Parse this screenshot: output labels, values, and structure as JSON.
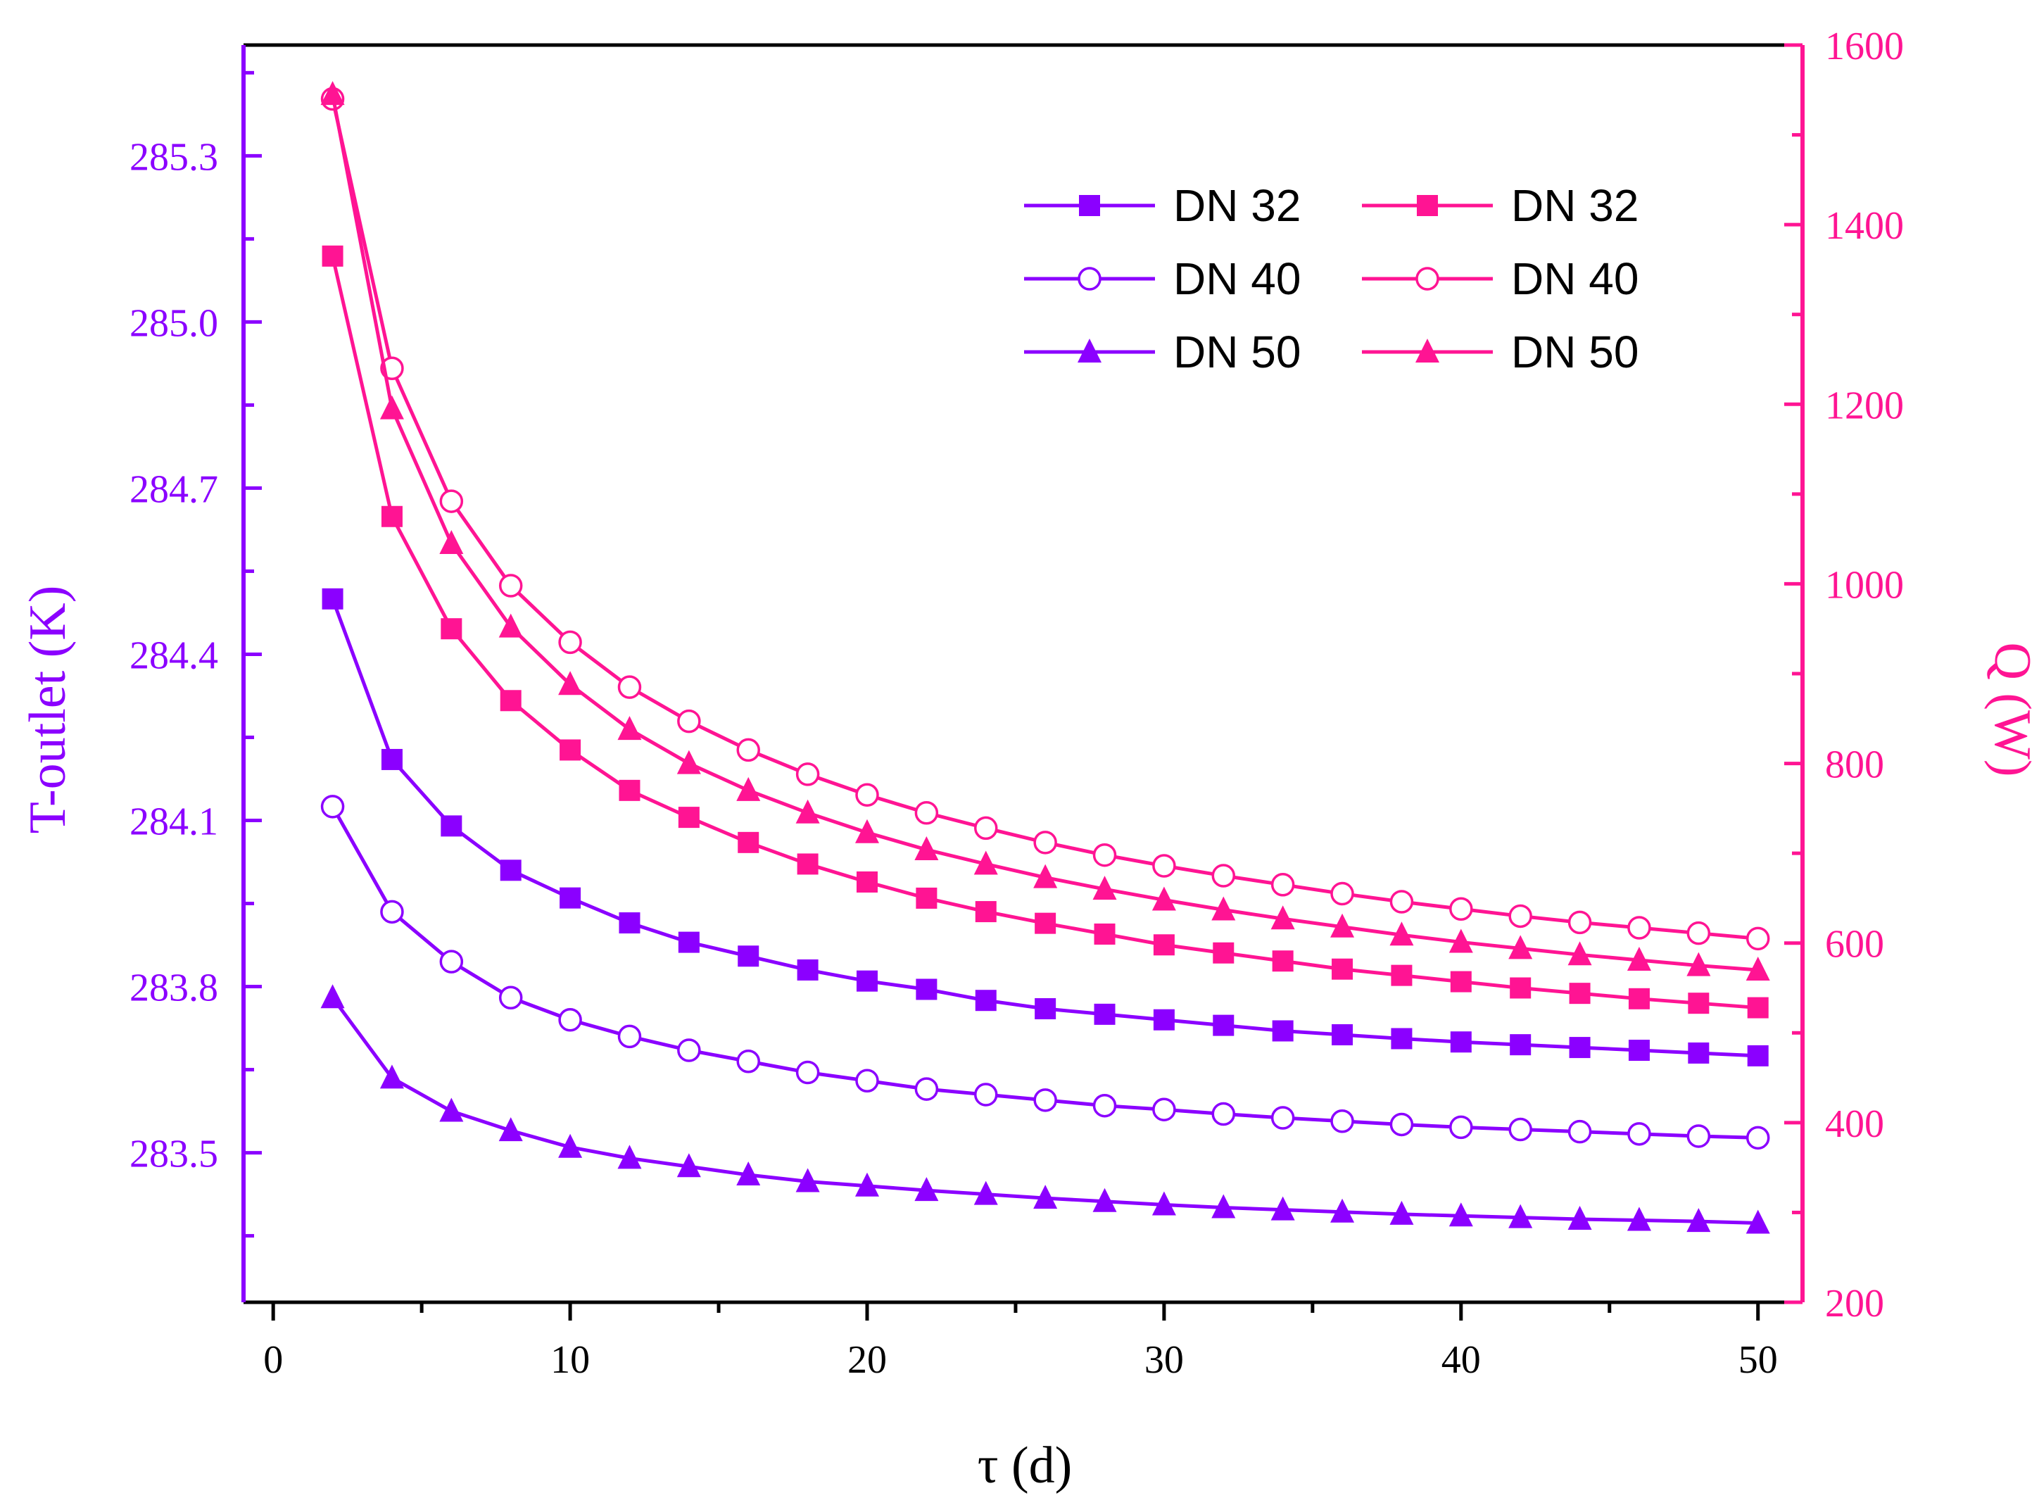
{
  "chart_data": {
    "type": "line",
    "xlabel": "τ (d)",
    "ylabel_left": "T-outlet (K)",
    "ylabel_right": "Q (W)",
    "xlim": [
      -1,
      51.5
    ],
    "ylim_left": [
      283.23,
      285.5
    ],
    "ylim_right": [
      200,
      1600
    ],
    "x_ticks": [
      0,
      10,
      20,
      30,
      40,
      50
    ],
    "y_left_ticks": [
      283.5,
      283.8,
      284.1,
      284.4,
      284.7,
      285.0,
      285.3
    ],
    "y_left_tick_labels": [
      "283.5",
      "283.8",
      "284.1",
      "284.4",
      "284.7",
      "285.0",
      "285.3"
    ],
    "y_right_ticks": [
      200,
      400,
      600,
      800,
      1000,
      1200,
      1400,
      1600
    ],
    "x": [
      2,
      4,
      6,
      8,
      10,
      12,
      14,
      16,
      18,
      20,
      22,
      24,
      26,
      28,
      30,
      32,
      34,
      36,
      38,
      40,
      42,
      44,
      46,
      48,
      50
    ],
    "colors": {
      "left": "#8B00FF",
      "right": "#FF1493",
      "axis": "#000000"
    },
    "legend_position": "top-right",
    "series": [
      {
        "name": "DN 32",
        "axis": "left",
        "marker": "square",
        "values": [
          284.5,
          284.21,
          284.09,
          284.01,
          283.96,
          283.915,
          283.88,
          283.855,
          283.83,
          283.81,
          283.795,
          283.775,
          283.76,
          283.75,
          283.74,
          283.73,
          283.72,
          283.713,
          283.706,
          283.7,
          283.695,
          283.69,
          283.685,
          283.68,
          283.675
        ]
      },
      {
        "name": "DN 40",
        "axis": "left",
        "marker": "circle-open",
        "values": [
          284.125,
          283.935,
          283.845,
          283.78,
          283.74,
          283.71,
          283.685,
          283.665,
          283.645,
          283.63,
          283.615,
          283.605,
          283.595,
          283.585,
          283.578,
          283.57,
          283.563,
          283.557,
          283.551,
          283.546,
          283.542,
          283.538,
          283.534,
          283.53,
          283.527
        ]
      },
      {
        "name": "DN 50",
        "axis": "left",
        "marker": "triangle",
        "values": [
          283.78,
          283.635,
          283.575,
          283.54,
          283.51,
          283.49,
          283.475,
          283.46,
          283.448,
          283.44,
          283.432,
          283.425,
          283.418,
          283.412,
          283.406,
          283.401,
          283.397,
          283.393,
          283.389,
          283.386,
          283.383,
          283.38,
          283.378,
          283.376,
          283.373
        ]
      },
      {
        "name": "DN 32",
        "axis": "right",
        "marker": "square",
        "values": [
          1365,
          1075,
          950,
          870,
          815,
          770,
          740,
          712,
          688,
          668,
          650,
          635,
          622,
          610,
          598,
          589,
          580,
          571,
          564,
          557,
          550,
          544,
          538,
          533,
          528
        ]
      },
      {
        "name": "DN 40",
        "axis": "right",
        "marker": "circle-open",
        "values": [
          1540,
          1240,
          1092,
          998,
          935,
          885,
          847,
          815,
          788,
          765,
          745,
          728,
          712,
          698,
          686,
          675,
          665,
          655,
          646,
          638,
          630,
          623,
          617,
          611,
          605
        ]
      },
      {
        "name": "DN 50",
        "axis": "right",
        "marker": "triangle",
        "values": [
          1545,
          1195,
          1045,
          952,
          888,
          838,
          800,
          770,
          745,
          723,
          704,
          688,
          673,
          660,
          648,
          637,
          627,
          618,
          609,
          601,
          594,
          587,
          581,
          575,
          570
        ]
      }
    ]
  }
}
